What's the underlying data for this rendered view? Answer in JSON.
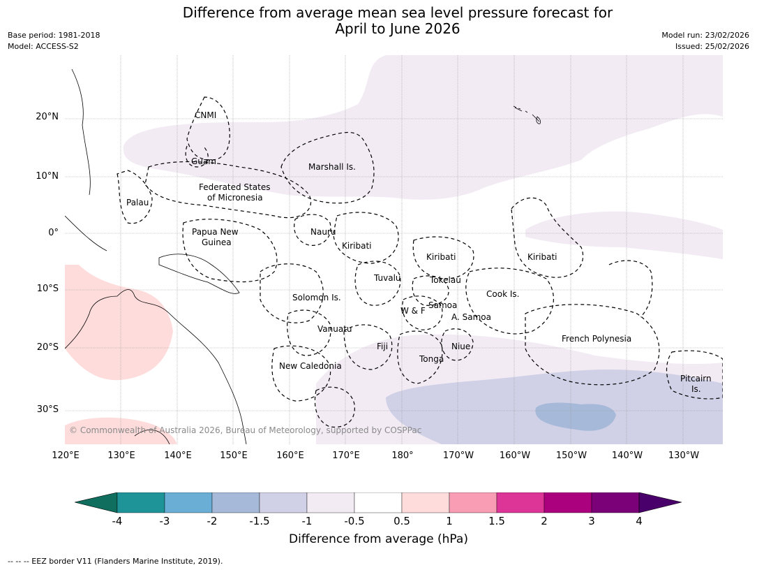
{
  "title_line1": "Difference from average mean sea level pressure forecast for",
  "title_line2": "April to June 2026",
  "meta": {
    "base_period": "Base period: 1981-2018",
    "model": "Model: ACCESS-S2",
    "model_run": "Model run: 23/02/2026",
    "issued": "Issued: 25/02/2026"
  },
  "map": {
    "lat_labels": [
      "20°N",
      "10°N",
      "0°",
      "10°S",
      "20°S",
      "30°S"
    ],
    "lon_labels": [
      "120°E",
      "130°E",
      "140°E",
      "150°E",
      "160°E",
      "170°E",
      "180°",
      "170°W",
      "160°W",
      "150°W",
      "140°W",
      "130°W"
    ],
    "places": {
      "cnmi": "CNMI",
      "guam": "Guam",
      "marshall": "Marshall Is.",
      "fsm_1": "Federated States",
      "fsm_2": "of Micronesia",
      "palau": "Palau",
      "png_1": "Papua New",
      "png_2": "Guinea",
      "nauru": "Nauru",
      "kiribati_w": "Kiribati",
      "kiribati_c": "Kiribati",
      "kiribati_e": "Kiribati",
      "tuvalu": "Tuvalu",
      "tokelau": "Tokelau",
      "cook": "Cook Is.",
      "solomon": "Solomon Is.",
      "wallis": "W & F",
      "samoa": "Samoa",
      "am_samoa": "A. Samoa",
      "vanuatu": "Vanuatu",
      "fiji": "Fiji",
      "niue": "Niue",
      "tonga": "Tonga",
      "french_polynesia": "French Polynesia",
      "new_caledonia": "New Caledonia",
      "pitcairn_1": "Pitcairn",
      "pitcairn_2": "Is."
    },
    "copyright": "© Commonwealth of Australia 2026, Bureau of Meteorology, supported by COSPPac"
  },
  "colorbar": {
    "ticks": [
      "-4",
      "-3",
      "-2",
      "-1.5",
      "-1",
      "-0.5",
      "0.5",
      "1",
      "1.5",
      "2",
      "3",
      "4"
    ],
    "colors": [
      "#0f6e5e",
      "#1e9499",
      "#6aaed6",
      "#a6b9d9",
      "#d0d0e6",
      "#f2ebf4",
      "#ffffff",
      "#fedcdc",
      "#f99db5",
      "#dc3597",
      "#ac017e",
      "#7a0177",
      "#49006a"
    ],
    "title": "Difference from average (hPa)"
  },
  "footnote": "--  --  -- EEZ border V11 (Flanders Marine Institute, 2019)."
}
